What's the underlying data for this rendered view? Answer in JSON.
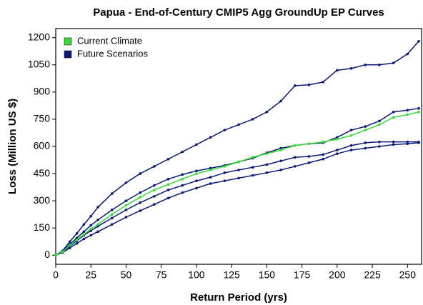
{
  "chart_data": {
    "type": "line",
    "title": "Papua - End-of-Century CMIP5 Agg GroundUp EP Curves",
    "x_label": "Return Period (yrs)",
    "y_label": "Loss (Million US $)",
    "xlim": [
      0,
      260
    ],
    "ylim": [
      -50,
      1250
    ],
    "xticks": [
      0,
      25,
      50,
      75,
      100,
      125,
      150,
      175,
      200,
      225,
      250
    ],
    "yticks": [
      0,
      150,
      300,
      450,
      600,
      750,
      900,
      1050,
      1200
    ],
    "legend": "top-left",
    "x": [
      0,
      5,
      10,
      15,
      20,
      25,
      30,
      40,
      50,
      60,
      70,
      80,
      90,
      100,
      110,
      120,
      130,
      140,
      150,
      160,
      170,
      180,
      190,
      200,
      210,
      220,
      230,
      240,
      250,
      258
    ],
    "series": [
      {
        "name": "Current Climate",
        "color": "#33dd33",
        "lines": [
          [
            0,
            20,
            55,
            85,
            115,
            145,
            170,
            225,
            275,
            320,
            360,
            390,
            420,
            450,
            470,
            490,
            515,
            540,
            560,
            580,
            605,
            615,
            625,
            640,
            660,
            690,
            720,
            760,
            775,
            790
          ]
        ]
      },
      {
        "name": "Future Scenarios",
        "color": "#0a1a7a",
        "lines": [
          [
            0,
            25,
            75,
            120,
            170,
            215,
            265,
            340,
            400,
            450,
            490,
            530,
            570,
            610,
            650,
            690,
            720,
            750,
            790,
            850,
            935,
            940,
            955,
            1020,
            1030,
            1050,
            1050,
            1060,
            1110,
            1180
          ],
          [
            0,
            22,
            60,
            95,
            130,
            165,
            195,
            250,
            300,
            345,
            385,
            420,
            445,
            465,
            480,
            495,
            515,
            535,
            565,
            590,
            605,
            615,
            620,
            650,
            690,
            710,
            740,
            790,
            800,
            810
          ],
          [
            0,
            20,
            50,
            80,
            110,
            135,
            160,
            205,
            250,
            290,
            325,
            360,
            385,
            410,
            430,
            455,
            470,
            485,
            500,
            520,
            540,
            545,
            555,
            580,
            605,
            620,
            625,
            625,
            625,
            625
          ],
          [
            0,
            15,
            40,
            65,
            90,
            110,
            130,
            170,
            210,
            245,
            280,
            315,
            345,
            370,
            395,
            410,
            425,
            440,
            455,
            470,
            490,
            510,
            530,
            560,
            580,
            590,
            600,
            610,
            615,
            620
          ]
        ]
      }
    ]
  }
}
